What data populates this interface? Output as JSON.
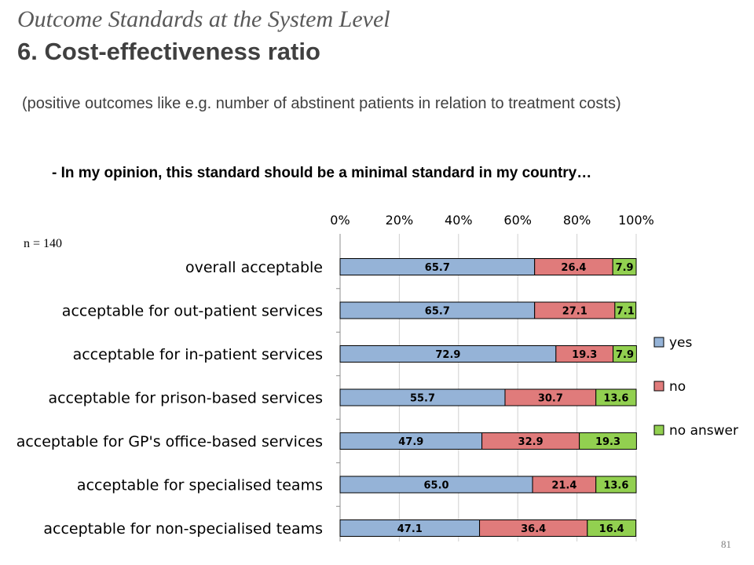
{
  "header": {
    "title_italic": "Outcome Standards at the System Level",
    "title_bold": "6. Cost-effectiveness ratio"
  },
  "subtitle": "(positive outcomes like e.g. number of abstinent patients in relation to treatment costs)",
  "question": "- In my opinion, this standard should be a minimal standard in my country…",
  "sample_size": "n = 140",
  "page_number": "81",
  "chart_data": {
    "type": "bar",
    "stacked": true,
    "orientation": "horizontal",
    "categories": [
      "overall acceptable",
      "acceptable for out-patient services",
      "acceptable for in-patient services",
      "acceptable for prison-based services",
      "acceptable for GP's office-based services",
      "acceptable for specialised teams",
      "acceptable for non-specialised teams"
    ],
    "series": [
      {
        "name": "yes",
        "color": "#95b3d7",
        "values": [
          65.7,
          65.7,
          72.9,
          55.7,
          47.9,
          65.0,
          47.1
        ]
      },
      {
        "name": "no",
        "color": "#e07b7b",
        "values": [
          26.4,
          27.1,
          19.3,
          30.7,
          32.9,
          21.4,
          36.4
        ]
      },
      {
        "name": "no answer",
        "color": "#92d050",
        "values": [
          7.9,
          7.1,
          7.9,
          13.6,
          19.3,
          13.6,
          16.4
        ]
      }
    ],
    "xlim": [
      0,
      100
    ],
    "x_ticks": [
      "0%",
      "20%",
      "40%",
      "60%",
      "80%",
      "100%"
    ],
    "x_axis_position": "top",
    "grid": true,
    "legend_position": "right"
  }
}
